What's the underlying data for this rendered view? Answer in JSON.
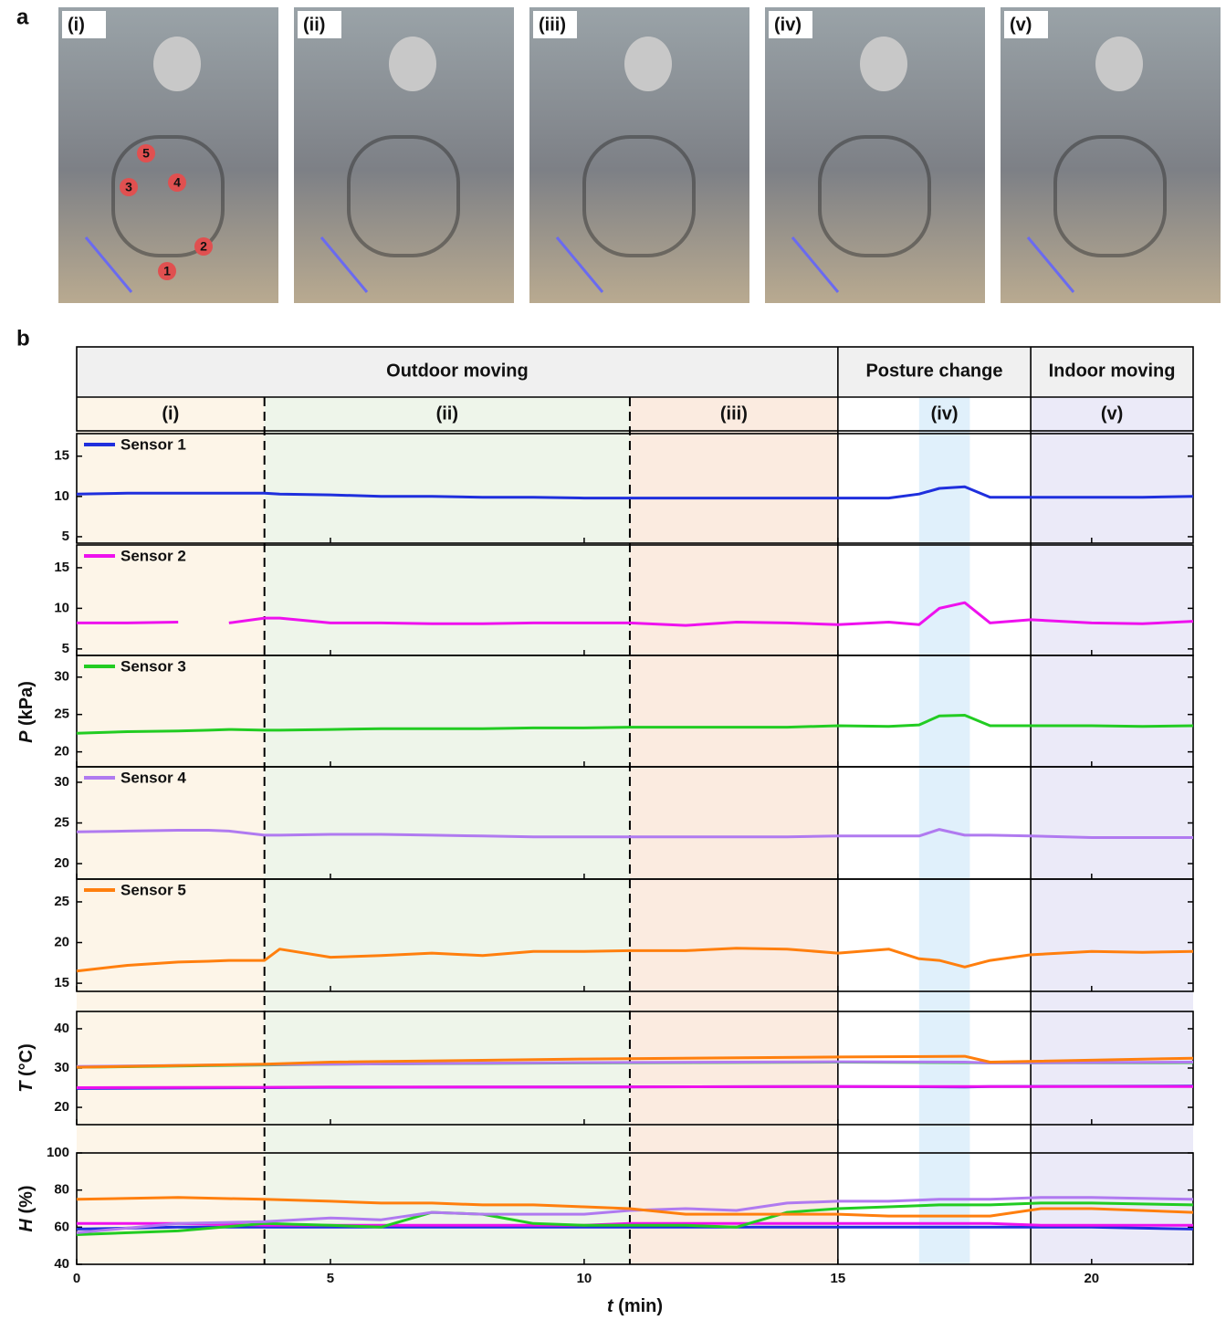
{
  "figure": {
    "panel_labels": [
      "a",
      "b"
    ],
    "photos": [
      "(i)",
      "(ii)",
      "(iii)",
      "(iv)",
      "(v)"
    ],
    "photo_markers": [
      "1",
      "2",
      "3",
      "4",
      "5"
    ],
    "groups": [
      {
        "label": "Outdoor moving",
        "start": 0,
        "end": 15
      },
      {
        "label": "Posture change",
        "start": 15,
        "end": 18.8
      },
      {
        "label": "Indoor moving",
        "start": 18.8,
        "end": 22
      }
    ],
    "phases": [
      {
        "label": "(i)",
        "start": 0,
        "end": 3.7,
        "color": "#fdf5e8"
      },
      {
        "label": "(ii)",
        "start": 3.7,
        "end": 10.9,
        "color": "#eef5ea"
      },
      {
        "label": "(iii)",
        "start": 10.9,
        "end": 15,
        "color": "#fbebe0"
      },
      {
        "label": "(iv)",
        "start": 16.6,
        "end": 17.6,
        "color": "#e0f0fb"
      },
      {
        "label": "(v)",
        "start": 18.8,
        "end": 22,
        "color": "#ebeaf8"
      }
    ],
    "p_ylabel": {
      "symbol": "P",
      "unit": "(kPa)"
    }
  },
  "chart_data": [
    {
      "type": "line",
      "legend": true,
      "xlim": [
        0,
        22
      ],
      "xticks": [
        0,
        5,
        10,
        15,
        20
      ],
      "ylim": [
        4.2,
        17.8
      ],
      "yticks": [
        5,
        10,
        15
      ],
      "x": [
        0,
        1,
        2,
        2.6,
        3,
        3.7,
        4,
        5,
        6,
        7,
        8,
        9,
        10,
        10.9,
        12,
        13,
        14,
        15,
        16,
        16.6,
        17,
        17.5,
        18,
        18.8,
        20,
        21,
        22
      ],
      "series": [
        {
          "name": "Sensor 1",
          "color": "#1f2fdd",
          "values": [
            10.3,
            10.4,
            10.4,
            10.4,
            10.4,
            10.4,
            10.3,
            10.2,
            10.0,
            10.0,
            9.9,
            9.9,
            9.8,
            9.8,
            9.8,
            9.8,
            9.8,
            9.8,
            9.8,
            10.3,
            11.0,
            11.2,
            9.9,
            9.9,
            9.9,
            9.9,
            10.0
          ]
        }
      ]
    },
    {
      "type": "line",
      "legend": true,
      "xlim": [
        0,
        22
      ],
      "xticks": [
        0,
        5,
        10,
        15,
        20
      ],
      "ylim": [
        4.2,
        17.8
      ],
      "yticks": [
        5,
        10,
        15
      ],
      "x": [
        0,
        1,
        2,
        2.6,
        3,
        3.7,
        4,
        5,
        6,
        7,
        8,
        9,
        10,
        10.9,
        12,
        13,
        14,
        15,
        16,
        16.6,
        17,
        17.5,
        18,
        18.8,
        20,
        21,
        22
      ],
      "series": [
        {
          "name": "Sensor 2",
          "color": "#ee11ee",
          "values": [
            8.2,
            8.2,
            8.3,
            null,
            8.2,
            8.8,
            8.8,
            8.2,
            8.2,
            8.1,
            8.1,
            8.2,
            8.2,
            8.2,
            7.9,
            8.3,
            8.2,
            8.0,
            8.3,
            8.0,
            10.0,
            10.7,
            8.2,
            8.6,
            8.2,
            8.1,
            8.4
          ]
        }
      ]
    },
    {
      "type": "line",
      "legend": true,
      "xlim": [
        0,
        22
      ],
      "xticks": [
        0,
        5,
        10,
        15,
        20
      ],
      "ylim": [
        18,
        32.9
      ],
      "yticks": [
        20,
        25,
        30
      ],
      "x": [
        0,
        1,
        2,
        2.6,
        3,
        3.7,
        4,
        5,
        6,
        7,
        8,
        9,
        10,
        10.9,
        12,
        13,
        14,
        15,
        16,
        16.6,
        17,
        17.5,
        18,
        18.8,
        20,
        21,
        22
      ],
      "series": [
        {
          "name": "Sensor 3",
          "color": "#22cc22",
          "values": [
            22.5,
            22.7,
            22.8,
            22.9,
            23.0,
            22.9,
            22.9,
            23.0,
            23.1,
            23.1,
            23.1,
            23.2,
            23.2,
            23.3,
            23.3,
            23.3,
            23.3,
            23.5,
            23.4,
            23.6,
            24.8,
            24.9,
            23.5,
            23.5,
            23.5,
            23.4,
            23.5
          ]
        }
      ]
    },
    {
      "type": "line",
      "legend": true,
      "xlim": [
        0,
        22
      ],
      "xticks": [
        0,
        5,
        10,
        15,
        20
      ],
      "ylim": [
        18.1,
        31.9
      ],
      "yticks": [
        20,
        25,
        30
      ],
      "x": [
        0,
        1,
        2,
        2.6,
        3,
        3.7,
        4,
        5,
        6,
        7,
        8,
        9,
        10,
        10.9,
        12,
        13,
        14,
        15,
        16,
        16.6,
        17,
        17.5,
        18,
        18.8,
        20,
        21,
        22
      ],
      "series": [
        {
          "name": "Sensor 4",
          "color": "#b07af0",
          "values": [
            23.9,
            24.0,
            24.1,
            24.1,
            24.0,
            23.5,
            23.5,
            23.6,
            23.6,
            23.5,
            23.4,
            23.3,
            23.3,
            23.3,
            23.3,
            23.3,
            23.3,
            23.4,
            23.4,
            23.4,
            24.2,
            23.5,
            23.5,
            23.4,
            23.2,
            23.2,
            23.2
          ]
        }
      ]
    },
    {
      "type": "line",
      "legend": true,
      "xlim": [
        0,
        22
      ],
      "xticks": [
        0,
        5,
        10,
        15,
        20
      ],
      "ylim": [
        14,
        27.8
      ],
      "yticks": [
        15,
        20,
        25
      ],
      "x": [
        0,
        1,
        2,
        2.6,
        3,
        3.7,
        4,
        5,
        6,
        7,
        8,
        9,
        10,
        10.9,
        12,
        13,
        14,
        15,
        16,
        16.6,
        17,
        17.5,
        18,
        18.8,
        20,
        21,
        22
      ],
      "series": [
        {
          "name": "Sensor 5",
          "color": "#ff7f0e",
          "values": [
            16.5,
            17.2,
            17.6,
            17.7,
            17.8,
            17.8,
            19.2,
            18.2,
            18.4,
            18.7,
            18.4,
            18.9,
            18.9,
            19.0,
            19.0,
            19.3,
            19.2,
            18.7,
            19.2,
            18.0,
            17.8,
            17.0,
            17.8,
            18.5,
            18.9,
            18.8,
            18.9
          ]
        }
      ]
    },
    {
      "type": "line",
      "legend": false,
      "xlim": [
        0,
        22
      ],
      "xticks": [
        0,
        5,
        10,
        15,
        20
      ],
      "ylim": [
        15.6,
        44.4
      ],
      "yticks": [
        20,
        30,
        40
      ],
      "ylabel": {
        "symbol": "T",
        "unit": "(°C)"
      },
      "x": [
        0,
        3.7,
        5,
        10,
        15,
        17.5,
        18,
        22
      ],
      "series": [
        {
          "color": "#22cc22",
          "values": [
            30.2,
            30.8,
            31.0,
            31.3,
            31.5,
            31.4,
            31.3,
            31.4
          ]
        },
        {
          "color": "#b07af0",
          "values": [
            30.4,
            30.9,
            31.0,
            31.4,
            31.6,
            31.5,
            31.3,
            31.5
          ]
        },
        {
          "color": "#ff7f0e",
          "values": [
            30.2,
            31.0,
            31.5,
            32.3,
            32.8,
            33.0,
            31.5,
            32.5
          ]
        },
        {
          "color": "#1f2fdd",
          "values": [
            24.8,
            25.0,
            25.1,
            25.2,
            25.3,
            25.2,
            25.3,
            25.4
          ]
        },
        {
          "color": "#ee11ee",
          "values": [
            25.0,
            25.1,
            25.2,
            25.2,
            25.3,
            25.3,
            25.3,
            25.3
          ]
        }
      ]
    },
    {
      "type": "line",
      "legend": false,
      "xlim": [
        0,
        22
      ],
      "xticks": [
        0,
        5,
        10,
        15,
        20
      ],
      "ylim": [
        40,
        100
      ],
      "yticks": [
        40,
        60,
        80,
        100
      ],
      "ylabel": {
        "symbol": "H",
        "unit": "(%)"
      },
      "xlabel": {
        "symbol": "t",
        "unit": "(min)"
      },
      "x": [
        0,
        2,
        3.7,
        5,
        6,
        7,
        8,
        9,
        10,
        10.9,
        12,
        13,
        14,
        15,
        16,
        17,
        18,
        19,
        20,
        22
      ],
      "series": [
        {
          "color": "#1f2fdd",
          "values": [
            59,
            60,
            60,
            60,
            60,
            60,
            60,
            60,
            60,
            60,
            60,
            60,
            60,
            60,
            60,
            60,
            60,
            60,
            60,
            59
          ]
        },
        {
          "color": "#ee11ee",
          "values": [
            62,
            62,
            61,
            61,
            61,
            61,
            61,
            61,
            61,
            62,
            62,
            62,
            62,
            62,
            62,
            62,
            62,
            61,
            61,
            61
          ]
        },
        {
          "color": "#22cc22",
          "values": [
            56,
            58,
            62,
            61,
            60,
            68,
            67,
            62,
            61,
            61,
            61,
            60,
            68,
            70,
            71,
            72,
            72,
            73,
            73,
            72
          ]
        },
        {
          "color": "#b07af0",
          "values": [
            57,
            62,
            63,
            65,
            64,
            68,
            67,
            67,
            67,
            69,
            70,
            69,
            73,
            74,
            74,
            75,
            75,
            76,
            76,
            75
          ]
        },
        {
          "color": "#ff7f0e",
          "values": [
            75,
            76,
            75,
            74,
            73,
            73,
            72,
            72,
            71,
            70,
            67,
            67,
            67,
            67,
            66,
            66,
            66,
            70,
            70,
            68
          ]
        }
      ]
    }
  ]
}
